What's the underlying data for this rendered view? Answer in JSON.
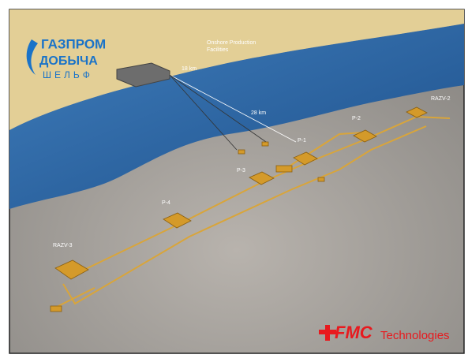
{
  "logo": {
    "line1": "ГАЗПРОМ",
    "line2": "ДОБЫЧА",
    "line3": "ШЕЛЬФ"
  },
  "facility": {
    "label_line1": "Onshore Production",
    "label_line2": "Facilities"
  },
  "distances": [
    "18 km",
    "28 km"
  ],
  "nodes": [
    {
      "label": "RAZV-3"
    },
    {
      "label": "P-4"
    },
    {
      "label": "P-3"
    },
    {
      "label": "P-1"
    },
    {
      "label": "P-2"
    },
    {
      "label": "RAZV-2"
    }
  ],
  "brand": {
    "mark": "FMC",
    "word": "Technologies"
  }
}
